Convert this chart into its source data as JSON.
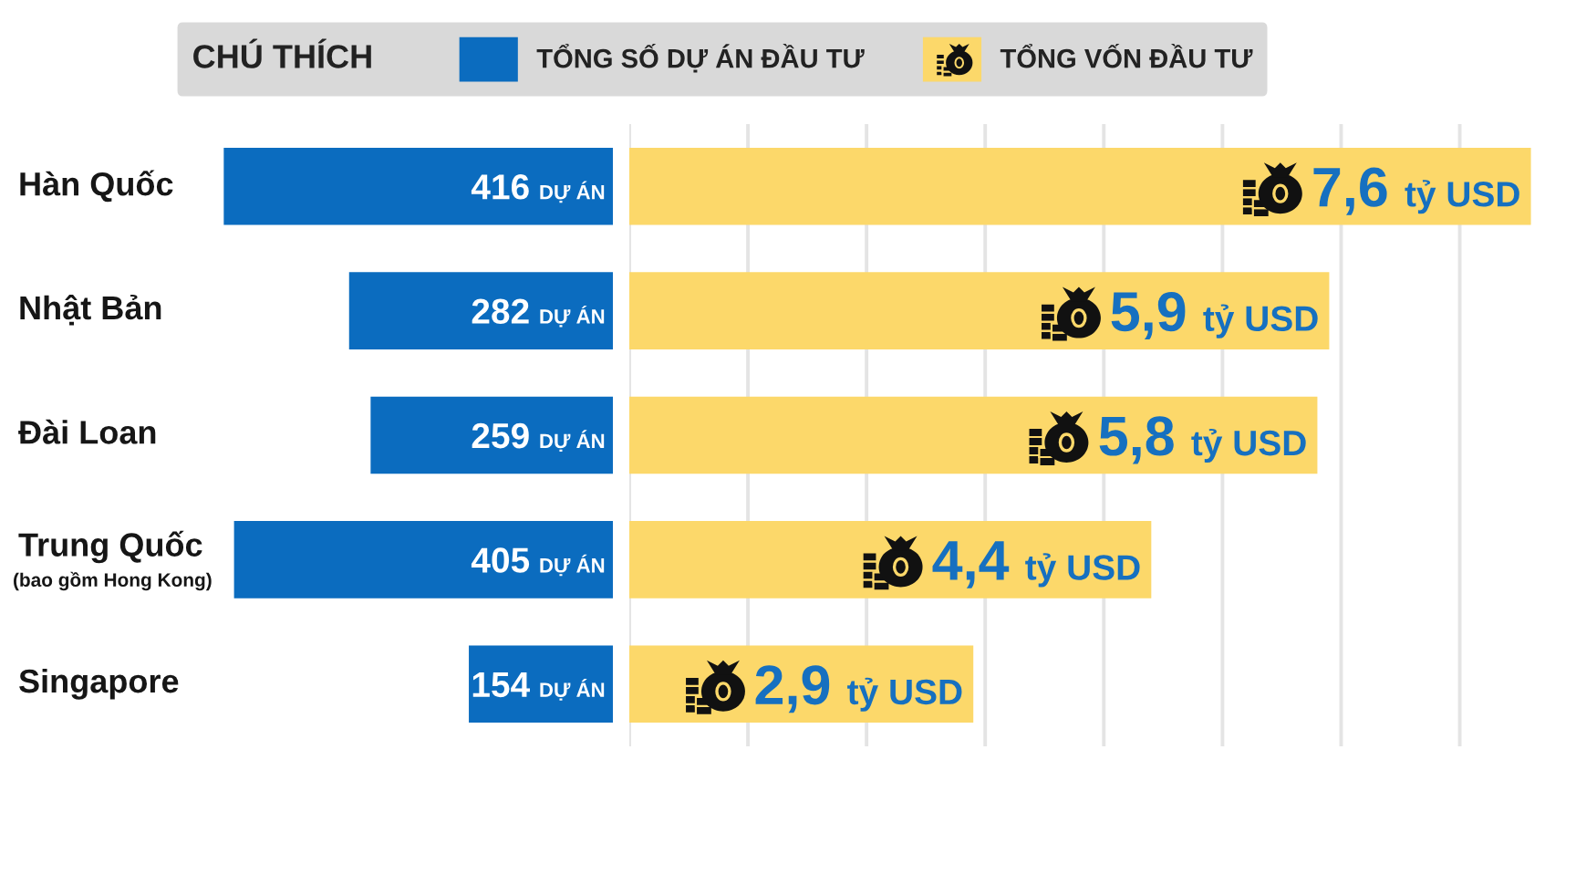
{
  "chart_data": [
    {
      "type": "bar",
      "orientation": "horizontal",
      "categories": [
        "Hàn Quốc",
        "Nhật Bản",
        "Đài Loan",
        "Trung Quốc\n(bao gồm Hong Kong)",
        "Singapore"
      ],
      "series": [
        {
          "name": "TỔNG SỐ DỰ ÁN ĐẦU TƯ",
          "color": "#0b6cbf",
          "values": [
            416,
            282,
            259,
            405,
            154
          ],
          "value_labels": [
            "416 DỰ ÁN",
            "282 DỰ ÁN",
            "259 DỰ ÁN",
            "405 DỰ ÁN",
            "154 DỰ ÁN"
          ]
        }
      ],
      "tick_labels": "y",
      "legend": "top",
      "legend_title": "CHÚ THÍCH"
    },
    {
      "type": "bar",
      "orientation": "horizontal",
      "categories": [
        null,
        null,
        null,
        null,
        null
      ],
      "series": [
        {
          "name": "TỔNG VỐN ĐẦU TƯ",
          "color": "#fcd86a",
          "values": [
            7.6,
            5.9,
            5.8,
            4.4,
            2.9
          ],
          "value_labels": [
            "7,6 tỷ USD",
            "5,9 tỷ USD",
            "5,8 tỷ USD",
            "4,4 tỷ USD",
            "2,9 tỷ USD"
          ]
        }
      ],
      "grid": "x",
      "tick_labels": false,
      "legend": "top"
    }
  ]
}
